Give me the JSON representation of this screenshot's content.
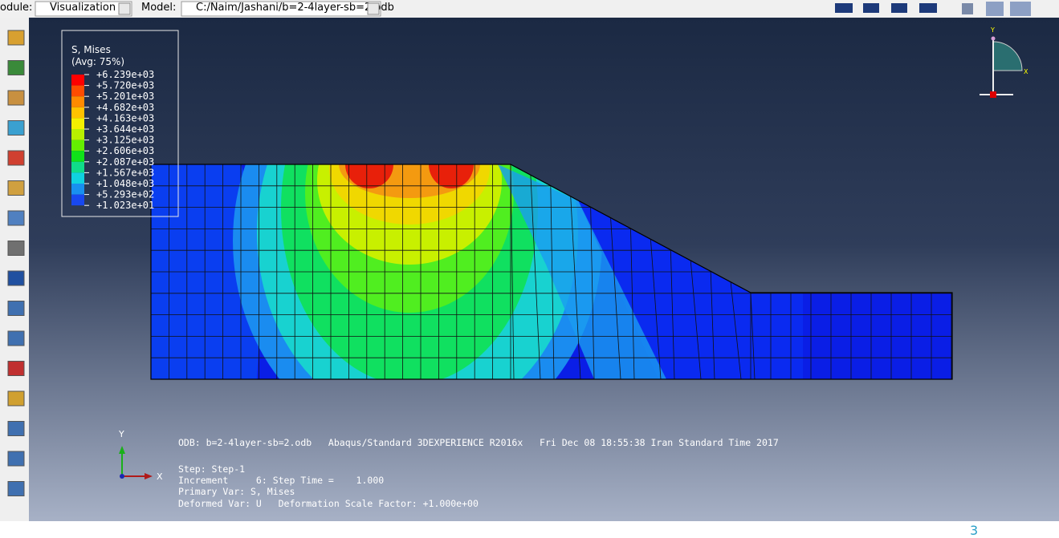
{
  "toolbar": {
    "module_label": "odule:",
    "module": "Visualization",
    "model_label": "Model:",
    "model": "C:/Naim/Jashani/b=2-4layer-sb=2.odb"
  },
  "legend": {
    "title": "S, Mises",
    "subtitle": "(Avg: 75%)",
    "levels": [
      "+6.239e+03",
      "+5.720e+03",
      "+5.201e+03",
      "+4.682e+03",
      "+4.163e+03",
      "+3.644e+03",
      "+3.125e+03",
      "+2.606e+03",
      "+2.087e+03",
      "+1.567e+03",
      "+1.048e+03",
      "+5.293e+02",
      "+1.023e+01"
    ]
  },
  "triad_top": {
    "y": "Y",
    "x": "X"
  },
  "triad_bottom": {
    "y": "Y",
    "x": "X"
  },
  "info": {
    "odb": "ODB: b=2-4layer-sb=2.odb   Abaqus/Standard 3DEXPERIENCE R2016x   Fri Dec 08 18:55:38 Iran Standard Time 2017",
    "step": "Step: Step-1",
    "increment": "Increment     6: Step Time =    1.000",
    "primary": "Primary Var: S, Mises",
    "deformed": "Deformed Var: U   Deformation Scale Factor: +1.000e+00"
  },
  "corner_text": "3"
}
